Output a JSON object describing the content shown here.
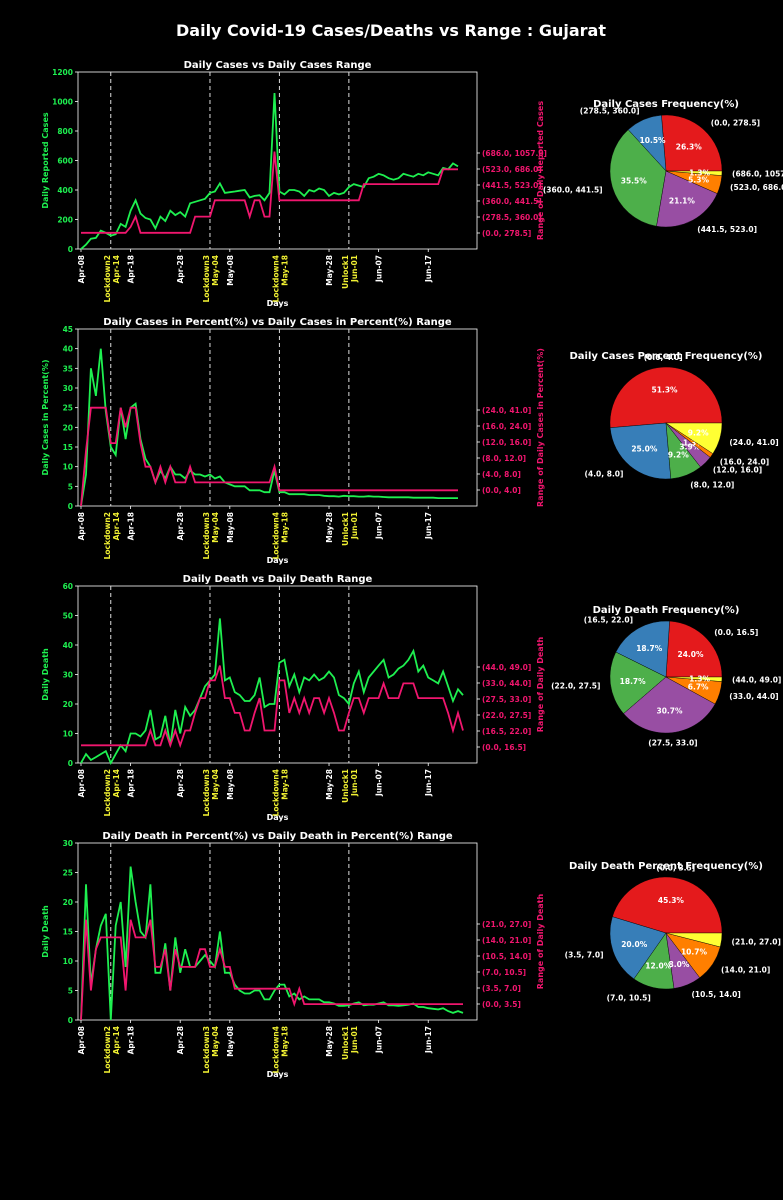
{
  "title": "Daily Covid-19 Cases/Deaths vs Range : Gujarat",
  "colors": {
    "background": "#000000",
    "actual_line": "#1ef050",
    "range_line": "#f0166e",
    "phase_label": "#f0f032",
    "text": "#ffffff",
    "pie_palette": [
      "#e41a1c",
      "#377eb8",
      "#4daf4a",
      "#984ea3",
      "#ff7f00",
      "#ffff33"
    ]
  },
  "x_ticks": [
    "Apr-08",
    "Apr-18",
    "Apr-28",
    "May-08",
    "May-28",
    "Jun-07",
    "Jun-17"
  ],
  "phase_markers": [
    {
      "label": "Lockdown2",
      "date": "Apr-14"
    },
    {
      "label": "Lockdown3",
      "date": "May-04"
    },
    {
      "label": "Lockdown4",
      "date": "May-18"
    },
    {
      "label": "Unlock1",
      "date": "Jun-01"
    }
  ],
  "chart_data": [
    {
      "type": "line",
      "title": "Daily Cases vs Daily Cases Range",
      "xlabel": "Days",
      "ylabel": "Daily Reported Cases",
      "ylabel_right": "Range of Daily Reported Cases",
      "ylim": [
        0,
        1200
      ],
      "yticks": [
        "0",
        "200",
        "400",
        "600",
        "800",
        "1000",
        "1200"
      ],
      "right_ticks": [
        "(0.0, 278.5]",
        "(278.5, 360.0]",
        "(360.0, 441.5]",
        "(441.5, 523.0]",
        "(523.0, 686.0]",
        "(686.0, 1057.0]"
      ],
      "series": [
        {
          "role": "actual",
          "values": [
            0,
            30,
            70,
            75,
            125,
            110,
            90,
            100,
            170,
            150,
            260,
            330,
            240,
            210,
            200,
            140,
            220,
            190,
            260,
            230,
            250,
            220,
            310,
            320,
            330,
            340,
            380,
            390,
            445,
            380,
            385,
            390,
            395,
            400,
            350,
            360,
            365,
            330,
            380,
            1057,
            390,
            370,
            400,
            400,
            390,
            360,
            400,
            390,
            410,
            400,
            360,
            380,
            370,
            380,
            420,
            440,
            430,
            420,
            480,
            490,
            510,
            500,
            480,
            470,
            480,
            510,
            500,
            490,
            510,
            500,
            520,
            510,
            500,
            550,
            540,
            580,
            560
          ]
        },
        {
          "role": "range",
          "values": [
            110,
            110,
            110,
            110,
            110,
            110,
            110,
            110,
            110,
            110,
            150,
            220,
            110,
            110,
            110,
            110,
            110,
            110,
            110,
            110,
            110,
            110,
            110,
            220,
            220,
            220,
            220,
            330,
            330,
            330,
            330,
            330,
            330,
            330,
            220,
            330,
            330,
            220,
            220,
            660,
            330,
            330,
            330,
            330,
            330,
            330,
            330,
            330,
            330,
            330,
            330,
            330,
            330,
            330,
            330,
            330,
            330,
            440,
            440,
            440,
            440,
            440,
            440,
            440,
            440,
            440,
            440,
            440,
            440,
            440,
            440,
            440,
            440,
            540,
            540,
            540,
            540
          ]
        }
      ],
      "pie": {
        "title": "Daily Cases Frequency(%)",
        "slices": [
          {
            "label": "(0.0, 278.5]",
            "value": 26.3,
            "pct": "26.3%"
          },
          {
            "label": "(278.5, 360.0]",
            "value": 10.5,
            "pct": "10.5%"
          },
          {
            "label": "(360.0, 441.5]",
            "value": 35.5,
            "pct": "35.5%"
          },
          {
            "label": "(441.5, 523.0]",
            "value": 21.1,
            "pct": "21.1%"
          },
          {
            "label": "(523.0, 686.0]",
            "value": 5.3,
            "pct": "5.3%"
          },
          {
            "label": "(686.0, 1057.0]",
            "value": 1.3,
            "pct": "1.3%"
          }
        ]
      }
    },
    {
      "type": "line",
      "title": "Daily Cases in Percent(%) vs Daily Cases in Percent(%) Range",
      "xlabel": "Days",
      "ylabel": "Daily Cases in Percent(%)",
      "ylabel_right": "Range of Daily Cases in Percent(%)",
      "ylim": [
        0,
        45
      ],
      "yticks": [
        "0",
        "5",
        "10",
        "15",
        "20",
        "25",
        "30",
        "35",
        "40",
        "45"
      ],
      "right_ticks": [
        "(0.0, 4.0]",
        "(4.0, 8.0]",
        "(8.0, 12.0]",
        "(12.0, 16.0]",
        "(16.0, 24.0]",
        "(24.0, 41.0]"
      ],
      "series": [
        {
          "role": "actual",
          "values": [
            0,
            8,
            35,
            28,
            40,
            24,
            15,
            13,
            25,
            17,
            25,
            26,
            17,
            12,
            10,
            6,
            9,
            7,
            10,
            8,
            8,
            7,
            9,
            8,
            8,
            7.5,
            8,
            7,
            7.5,
            6,
            5.5,
            5,
            5,
            5,
            4,
            4,
            4,
            3.5,
            3.5,
            9,
            3.5,
            3.5,
            3,
            3,
            3,
            3,
            2.8,
            2.8,
            2.8,
            2.6,
            2.5,
            2.5,
            2.4,
            2.6,
            2.5,
            2.5,
            2.4,
            2.4,
            2.5,
            2.4,
            2.4,
            2.3,
            2.2,
            2.2,
            2.2,
            2.2,
            2.2,
            2.1,
            2.1,
            2.1,
            2.1,
            2.1,
            2.0,
            2.0,
            2.0,
            2.0,
            2.0
          ]
        },
        {
          "role": "range",
          "values": [
            0,
            14,
            25,
            25,
            25,
            25,
            16,
            16,
            25,
            20,
            25,
            25,
            16,
            10,
            10,
            6,
            10,
            6,
            10,
            6,
            6,
            6,
            10,
            6,
            6,
            6,
            6,
            6,
            6,
            6,
            6,
            6,
            6,
            6,
            6,
            6,
            6,
            6,
            6,
            10,
            4,
            4,
            4,
            4,
            4,
            4,
            4,
            4,
            4,
            4,
            4,
            4,
            4,
            4,
            4,
            4,
            4,
            4,
            4,
            4,
            4,
            4,
            4,
            4,
            4,
            4,
            4,
            4,
            4,
            4,
            4,
            4,
            4,
            4,
            4,
            4,
            4
          ]
        }
      ],
      "pie": {
        "title": "Daily Cases Percent Frequency(%)",
        "slices": [
          {
            "label": "(0.0, 4.0]",
            "value": 51.3,
            "pct": "51.3%"
          },
          {
            "label": "(4.0, 8.0]",
            "value": 25.0,
            "pct": "25.0%"
          },
          {
            "label": "(8.0, 12.0]",
            "value": 9.2,
            "pct": "9.2%"
          },
          {
            "label": "(12.0, 16.0]",
            "value": 3.9,
            "pct": "3.9%"
          },
          {
            "label": "(16.0, 24.0]",
            "value": 1.3,
            "pct": "1.3%"
          },
          {
            "label": "(24.0, 41.0]",
            "value": 9.2,
            "pct": "9.2%"
          }
        ]
      }
    },
    {
      "type": "line",
      "title": "Daily Death vs Daily Death Range",
      "xlabel": "Days",
      "ylabel": "Daily Death",
      "ylabel_right": "Range of Daily Death",
      "ylim": [
        0,
        60
      ],
      "yticks": [
        "0",
        "10",
        "20",
        "30",
        "40",
        "50",
        "60"
      ],
      "right_ticks": [
        "(0.0, 16.5]",
        "(16.5, 22.0]",
        "(22.0, 27.5]",
        "(27.5, 33.0]",
        "(33.0, 44.0]",
        "(44.0, 49.0]"
      ],
      "series": [
        {
          "role": "actual",
          "values": [
            0,
            3,
            1,
            2,
            3,
            4,
            0,
            3,
            6,
            4,
            10,
            10,
            9,
            11,
            18,
            8,
            9,
            16,
            6,
            18,
            10,
            19,
            16,
            18,
            22,
            26,
            28,
            30,
            49,
            28,
            29,
            24,
            23,
            21,
            21,
            23,
            29,
            19,
            20,
            20,
            34,
            35,
            26,
            30,
            24,
            29,
            28,
            30,
            28,
            29,
            31,
            29,
            23,
            22,
            20,
            27,
            31,
            24,
            29,
            31,
            33,
            35,
            29,
            30,
            32,
            33,
            35,
            38,
            31,
            33,
            29,
            28,
            27,
            31,
            26,
            21,
            25,
            23
          ]
        },
        {
          "role": "range",
          "values": [
            6,
            6,
            6,
            6,
            6,
            6,
            6,
            6,
            6,
            6,
            6,
            6,
            6,
            6,
            11,
            6,
            6,
            11,
            6,
            11,
            6,
            11,
            11,
            17,
            22,
            22,
            28,
            28,
            33,
            22,
            22,
            17,
            17,
            11,
            11,
            17,
            22,
            11,
            11,
            11,
            28,
            28,
            17,
            22,
            17,
            22,
            17,
            22,
            22,
            17,
            22,
            17,
            11,
            11,
            17,
            22,
            22,
            17,
            22,
            22,
            22,
            27,
            22,
            22,
            22,
            27,
            27,
            27,
            22,
            22,
            22,
            22,
            22,
            22,
            17,
            11,
            17,
            11
          ]
        }
      ],
      "pie": {
        "title": "Daily Death  Frequency(%)",
        "slices": [
          {
            "label": "(0.0, 16.5]",
            "value": 24.0,
            "pct": "24.0%"
          },
          {
            "label": "(16.5, 22.0]",
            "value": 18.7,
            "pct": "18.7%"
          },
          {
            "label": "(22.0, 27.5]",
            "value": 18.7,
            "pct": "18.7%"
          },
          {
            "label": "(27.5, 33.0]",
            "value": 30.7,
            "pct": "30.7%"
          },
          {
            "label": "(33.0, 44.0]",
            "value": 6.7,
            "pct": "6.7%"
          },
          {
            "label": "(44.0, 49.0]",
            "value": 1.3,
            "pct": "1.3%"
          }
        ]
      }
    },
    {
      "type": "line",
      "title": "Daily Death in Percent(%) vs Daily Death in Percent(%) Range",
      "xlabel": "Days",
      "ylabel": "Daily Death",
      "ylabel_right": "Range of Daily Death",
      "ylim": [
        0,
        30
      ],
      "yticks": [
        "0",
        "5",
        "10",
        "15",
        "20",
        "25",
        "30"
      ],
      "right_ticks": [
        "(0.0, 3.5]",
        "(3.5, 7.0]",
        "(7.0, 10.5]",
        "(10.5, 14.0]",
        "(14.0, 21.0]",
        "(21.0, 27.0]"
      ],
      "series": [
        {
          "role": "actual",
          "values": [
            0,
            23,
            6,
            12,
            16,
            18,
            0,
            16,
            20,
            9,
            26,
            20,
            15,
            14,
            23,
            8,
            8,
            13,
            5,
            14,
            8,
            12,
            9,
            9,
            10,
            11,
            10,
            9,
            15,
            8,
            8,
            6,
            5,
            4.5,
            4.5,
            5,
            5,
            3.5,
            3.5,
            5,
            6,
            6,
            4,
            4.5,
            3.5,
            4,
            3.5,
            3.5,
            3.5,
            3,
            3,
            2.8,
            2.4,
            2.4,
            2.5,
            2.8,
            3,
            2.5,
            2.6,
            2.6,
            2.8,
            3,
            2.5,
            2.5,
            2.4,
            2.5,
            2.6,
            2.8,
            2.2,
            2.2,
            2,
            1.9,
            1.8,
            2.0,
            1.5,
            1.2,
            1.5,
            1.2
          ]
        },
        {
          "role": "range",
          "values": [
            0,
            17,
            5,
            12,
            14,
            14,
            14,
            14,
            14,
            5,
            17,
            14,
            14,
            14,
            17,
            9,
            9,
            12,
            5,
            12,
            9,
            9,
            9,
            9,
            12,
            12,
            9,
            9,
            12,
            9,
            9,
            5.3,
            5.3,
            5.3,
            5.3,
            5.3,
            5.3,
            5.3,
            5.3,
            5.3,
            5.3,
            5.3,
            5.3,
            2.7,
            5.3,
            2.7,
            2.7,
            2.7,
            2.7,
            2.7,
            2.7,
            2.7,
            2.7,
            2.7,
            2.7,
            2.7,
            2.7,
            2.7,
            2.7,
            2.7,
            2.7,
            2.7,
            2.7,
            2.7,
            2.7,
            2.7,
            2.7,
            2.7,
            2.7,
            2.7,
            2.7,
            2.7,
            2.7,
            2.7,
            2.7,
            2.7,
            2.7,
            2.7
          ]
        }
      ],
      "pie": {
        "title": "Daily Death Percent Frequency(%)",
        "slices": [
          {
            "label": "(0.0, 3.5]",
            "value": 45.3,
            "pct": "45.3%"
          },
          {
            "label": "(3.5, 7.0]",
            "value": 20.0,
            "pct": "20.0%"
          },
          {
            "label": "(7.0, 10.5]",
            "value": 12.0,
            "pct": "12.0%"
          },
          {
            "label": "(10.5, 14.0]",
            "value": 8.0,
            "pct": "8.0%"
          },
          {
            "label": "(14.0, 21.0]",
            "value": 10.7,
            "pct": "10.7%"
          },
          {
            "label": "(21.0, 27.0]",
            "value": 4.0,
            "pct": ""
          }
        ]
      }
    }
  ]
}
